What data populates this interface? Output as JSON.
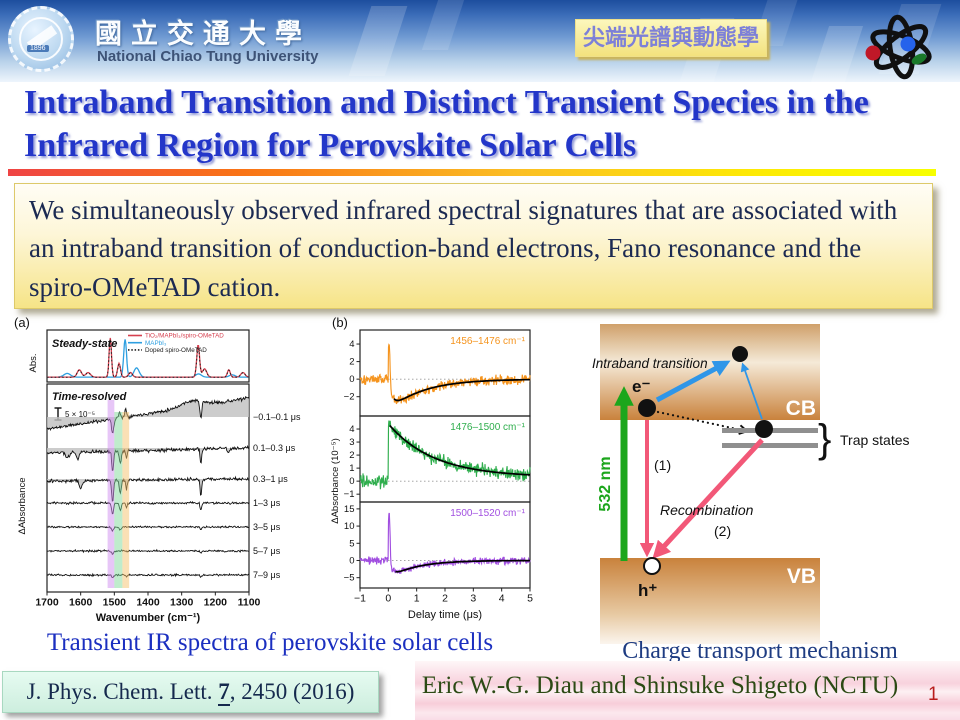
{
  "header": {
    "university_name_zh": "國立交通大學",
    "university_name_en": "National Chiao Tung University",
    "seal_year": "1896",
    "course_badge": "尖端光譜與動態學"
  },
  "title": "Intraband Transition and Distinct Transient Species in the Infrared Region for Perovskite  Solar Cells",
  "summary": "We simultaneously observed infrared spectral signatures that are associated with an intraband transition of conduction-band electrons, Fano resonance and the spiro-OMeTAD cation.",
  "captions": {
    "spectra": "Transient IR spectra of perovskite solar cells",
    "mechanism": "Charge transport mechanism"
  },
  "citation": {
    "journal": "J. Phys. Chem. Lett. ",
    "volume": "7",
    "rest": ", 2450 (2016)"
  },
  "authors": "Eric W.-G. Diau and Shinsuke Shigeto (NCTU)",
  "page_number": "1",
  "chart_data": [
    {
      "id": "fig_a",
      "type": "line",
      "panel_label": "(a)",
      "xlabel": "Wavenumber (cm⁻¹)",
      "x_ticks": [
        1700,
        1600,
        1500,
        1400,
        1300,
        1200,
        1100
      ],
      "x_range": [
        1700,
        1100
      ],
      "steady_state": {
        "title": "Steady-state",
        "ylabel": "Abs.",
        "legend": [
          {
            "label": "TiO₂/MAPbI₃/spiro-OMeTAD",
            "color": "#d6404f",
            "style": "solid"
          },
          {
            "label": "MAPbI₃",
            "color": "#2e9fe0",
            "style": "solid"
          },
          {
            "label": "Doped spiro-OMeTAD",
            "color": "#222222",
            "style": "dotted"
          }
        ],
        "series": [
          {
            "name": "TiO₂/MAPbI₃/spiro-OMeTAD",
            "color": "#d6404f",
            "peaks": [
              [
                1604,
                0.16,
                9
              ],
              [
                1578,
                0.1,
                10
              ],
              [
                1512,
                0.85,
                5
              ],
              [
                1486,
                0.3,
                6
              ],
              [
                1452,
                0.1,
                8
              ],
              [
                1251,
                0.7,
                6
              ],
              [
                1232,
                0.18,
                9
              ],
              [
                1160,
                0.16,
                6
              ],
              [
                1118,
                0.1,
                9
              ]
            ]
          },
          {
            "name": "MAPbI₃",
            "color": "#2e9fe0",
            "peaks": [
              [
                1640,
                0.08,
                14
              ],
              [
                1468,
                0.82,
                6
              ],
              [
                1434,
                0.2,
                11
              ],
              [
                1250,
                0.07,
                12
              ],
              [
                1150,
                0.05,
                12
              ]
            ]
          },
          {
            "name": "Doped spiro-OMeTAD",
            "color": "#222222",
            "dotted": true,
            "scale": 0.95
          }
        ]
      },
      "time_resolved": {
        "title": "Time-resolved",
        "ylabel": "ΔAbsorbance",
        "scale_bar": "5 × 10⁻⁵",
        "highlight_bands": [
          {
            "range_cm": [
              1520,
              1500
            ],
            "color": "#cf8ef0"
          },
          {
            "range_cm": [
              1500,
              1476
            ],
            "color": "#7fd99a"
          },
          {
            "range_cm": [
              1476,
              1456
            ],
            "color": "#f5c26b"
          }
        ],
        "traces": [
          {
            "label": "−0.1–0.1 μs",
            "fill": true,
            "ramp": [
              -12,
              19
            ],
            "noise": 1.6,
            "features": [
              [
                1505,
                -14,
                5
              ],
              [
                1484,
                6,
                4
              ],
              [
                1466,
                8,
                4
              ],
              [
                1270,
                6,
                45
              ],
              [
                1243,
                -17,
                4
              ]
            ]
          },
          {
            "label": "0.1–0.3 μs",
            "fill": true,
            "ramp": [
              -5,
              0
            ],
            "noise": 1.7,
            "features": [
              [
                1640,
                -5,
                8
              ],
              [
                1608,
                -7,
                6
              ],
              [
                1505,
                -20,
                4
              ],
              [
                1482,
                -12,
                4
              ],
              [
                1464,
                -8,
                3
              ],
              [
                1243,
                -15,
                3
              ],
              [
                1160,
                -4,
                5
              ]
            ]
          },
          {
            "label": "0.3–1 μs",
            "fill": true,
            "ramp": [
              -2,
              0
            ],
            "noise": 1.5,
            "features": [
              [
                1600,
                -8,
                6
              ],
              [
                1505,
                -22,
                4
              ],
              [
                1482,
                -13,
                4
              ],
              [
                1464,
                -9,
                3
              ],
              [
                1243,
                -18,
                3
              ]
            ]
          },
          {
            "label": "1–3 μs",
            "fill": false,
            "ramp": [
              0,
              0
            ],
            "noise": 1.1,
            "features": [
              [
                1505,
                -11,
                4
              ],
              [
                1482,
                -7,
                4
              ],
              [
                1464,
                -5,
                3
              ],
              [
                1243,
                -7,
                3
              ]
            ]
          },
          {
            "label": "3–5 μs",
            "fill": false,
            "ramp": [
              0,
              0
            ],
            "noise": 0.9,
            "features": [
              [
                1505,
                -4,
                4
              ],
              [
                1482,
                -3,
                4
              ],
              [
                1243,
                -3,
                3
              ]
            ]
          },
          {
            "label": "5–7 μs",
            "fill": false,
            "ramp": [
              0,
              0
            ],
            "noise": 0.9,
            "features": [
              [
                1505,
                -3,
                4
              ],
              [
                1243,
                -2,
                3
              ]
            ]
          },
          {
            "label": "7–9 μs",
            "fill": false,
            "ramp": [
              0,
              0
            ],
            "noise": 0.9,
            "features": [
              [
                1505,
                -3,
                4
              ],
              [
                1464,
                -2,
                3
              ],
              [
                1243,
                -2,
                3
              ]
            ]
          }
        ]
      }
    },
    {
      "id": "fig_b",
      "type": "line",
      "panel_label": "(b)",
      "xlabel": "Delay time (μs)",
      "x_ticks": [
        -1,
        0,
        1,
        2,
        3,
        4,
        5
      ],
      "x_range": [
        -1,
        5
      ],
      "ylabel": "ΔAbsorbance (10⁻⁵)",
      "panels": [
        {
          "label": "1456–1476 cm⁻¹",
          "color": "#f5941e",
          "y_ticks": [
            4,
            2,
            0,
            -2
          ],
          "y_range": [
            -4.2,
            5.6
          ],
          "mode": "spike_dip",
          "spike": 4.6,
          "dip": -3.6,
          "tau_us": 1.2,
          "noise": 0.55,
          "fit_start": 0.2
        },
        {
          "label": "1476–1500 cm⁻¹",
          "color": "#2fae4d",
          "y_ticks": [
            4,
            3,
            2,
            1,
            0,
            -1
          ],
          "y_range": [
            -1.6,
            5.0
          ],
          "mode": "decay",
          "spike": 4.4,
          "floor": 0.3,
          "tau_us": 1.6,
          "noise": 0.5,
          "fit_start": 0.05
        },
        {
          "label": "1500–1520 cm⁻¹",
          "color": "#a14fe0",
          "y_ticks": [
            15,
            10,
            5,
            0,
            -5
          ],
          "y_range": [
            -8,
            17
          ],
          "mode": "spike_dip",
          "spike": 14.5,
          "dip": -5.2,
          "tau_us": 0.95,
          "noise": 1.0,
          "fit_start": 0.25
        }
      ]
    }
  ],
  "diagram": {
    "labels": {
      "cb": "CB",
      "vb": "VB",
      "electron": "e⁻",
      "hole": "h⁺",
      "pump": "532 nm",
      "intraband": "Intraband transition",
      "recombination": "Recombination",
      "path1": "(1)",
      "path2": "(2)",
      "trap": "Trap states",
      "brace": "}"
    },
    "colors": {
      "band_dark": "#c9823c",
      "band_light": "#f5ead8",
      "pump_green": "#1ca61c",
      "recomb_pink": "#f25878",
      "transition_blue": "#2f96e8",
      "trap_gray": "#8f8f8f"
    }
  }
}
